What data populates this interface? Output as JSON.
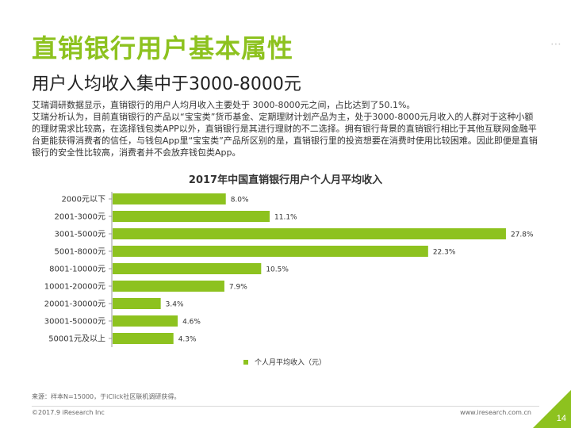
{
  "header": {
    "title": "直销银行用户基本属性",
    "subtitle": "用户人均收入集中于3000-8000元"
  },
  "description": {
    "line1": "艾瑞调研数据显示，直销银行的用户人均月收入主要处于 3000-8000元之间，占比达到了50.1%。",
    "line2": "艾瑞分析认为，目前直销银行的产品以“宝宝类”货币基金、定期理财计划产品为主，处于3000-8000元月收入的人群对于这种小额的理财需求比较高，在选择钱包类APP以外，直销银行是其进行理财的不二选择。拥有银行背景的直销银行相比于其他互联网金融平台更能获得消费者的信任，与钱包App里“宝宝类”产品所区别的是，直销银行里的投资想要在消费时使用比较困难。因此即便是直销银行的安全性比较高，消费者并不会放弃钱包类App。"
  },
  "chart_data": {
    "type": "bar",
    "orientation": "horizontal",
    "title": "2017年中国直销银行用户个人月平均收入",
    "categories": [
      "2000元以下",
      "2001-3000元",
      "3001-5000元",
      "5001-8000元",
      "8001-10000元",
      "10001-20000元",
      "20001-30000元",
      "30001-50000元",
      "50001元及以上"
    ],
    "values": [
      8.0,
      11.1,
      27.8,
      22.3,
      10.5,
      7.9,
      3.4,
      4.6,
      4.3
    ],
    "value_labels": [
      "8.0%",
      "11.1%",
      "27.8%",
      "22.3%",
      "10.5%",
      "7.9%",
      "3.4%",
      "4.6%",
      "4.3%"
    ],
    "unit": "%",
    "xlim": [
      0,
      30
    ],
    "grid": false,
    "legend": [
      "个人月平均收入（元）"
    ],
    "legend_position": "bottom",
    "bar_color": "#8dc21f"
  },
  "footer": {
    "source": "来源：样本N=15000，于iClick社区联机调研获得。",
    "copyright": "©2017.9 iResearch Inc",
    "site": "www.iresearch.com.cn",
    "page": "14"
  },
  "theme": {
    "accent": "#8dc21f"
  }
}
